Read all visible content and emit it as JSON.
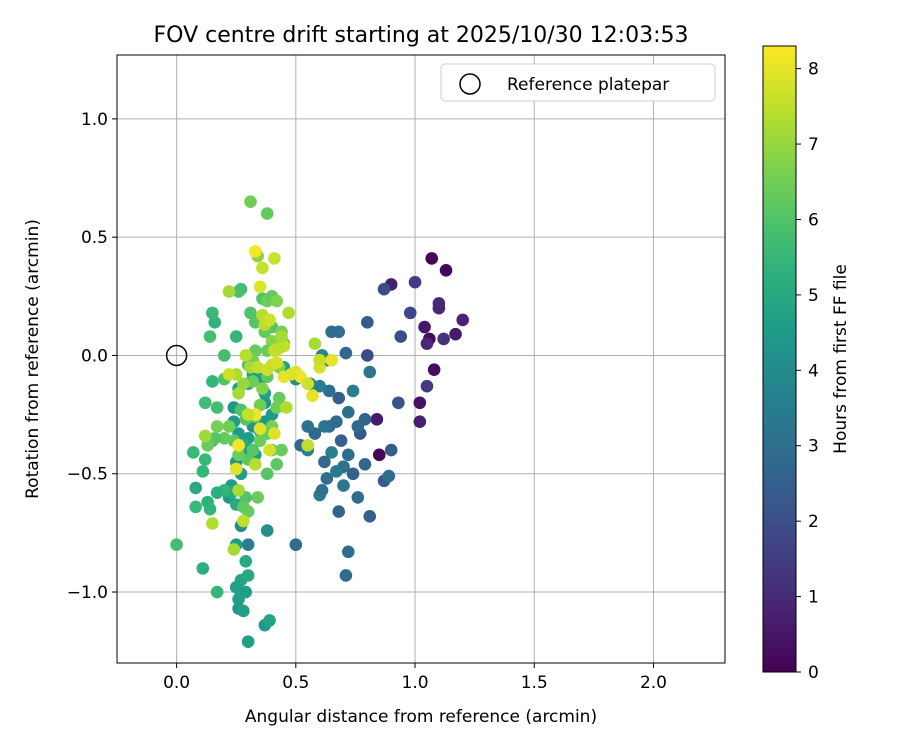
{
  "chart_data": {
    "type": "scatter",
    "title": "FOV centre drift starting at 2025/10/30 12:03:53",
    "xlabel": "Angular distance from reference (arcmin)",
    "ylabel": "Rotation from reference (arcmin)",
    "xlim": [
      -0.25,
      2.3
    ],
    "ylim": [
      -1.3,
      1.27
    ],
    "xticks": [
      0.0,
      0.5,
      1.0,
      1.5,
      2.0
    ],
    "xtick_labels": [
      "0.0",
      "0.5",
      "1.0",
      "1.5",
      "2.0"
    ],
    "yticks": [
      -1.0,
      -0.5,
      0.0,
      0.5,
      1.0
    ],
    "ytick_labels": [
      "−1.0",
      "−0.5",
      "0.0",
      "0.5",
      "1.0"
    ],
    "grid": true,
    "legend": {
      "position": "top-right",
      "entries": [
        "Reference platepar"
      ]
    },
    "reference_point": {
      "x": 0.0,
      "y": 0.0,
      "label": "Reference platepar"
    },
    "colorbar": {
      "label": "Hours from first FF file",
      "colormap": "viridis",
      "range": [
        0,
        8.3
      ],
      "ticks": [
        0,
        1,
        2,
        3,
        4,
        5,
        6,
        7,
        8
      ],
      "tick_labels": [
        "0",
        "1",
        "2",
        "3",
        "4",
        "5",
        "6",
        "7",
        "8"
      ]
    },
    "series": [
      {
        "name": "FOV centre drift",
        "points": [
          [
            1.07,
            0.41,
            0.1
          ],
          [
            1.13,
            0.36,
            0.15
          ],
          [
            1.06,
            0.07,
            0.2
          ],
          [
            1.08,
            -0.06,
            0.25
          ],
          [
            0.85,
            -0.42,
            0.1
          ],
          [
            1.2,
            0.15,
            0.8
          ],
          [
            1.17,
            0.09,
            0.6
          ],
          [
            1.1,
            0.22,
            1.0
          ],
          [
            1.1,
            0.2,
            0.9
          ],
          [
            1.04,
            0.12,
            0.5
          ],
          [
            1.12,
            0.07,
            1.2
          ],
          [
            1.05,
            0.05,
            0.9
          ],
          [
            0.9,
            0.3,
            0.7
          ],
          [
            1.0,
            0.31,
            1.5
          ],
          [
            1.02,
            -0.2,
            0.4
          ],
          [
            1.02,
            -0.28,
            0.7
          ],
          [
            1.05,
            -0.13,
            1.4
          ],
          [
            0.84,
            -0.27,
            0.6
          ],
          [
            0.98,
            0.18,
            1.8
          ],
          [
            0.94,
            0.08,
            1.9
          ],
          [
            0.87,
            0.28,
            1.9
          ],
          [
            0.93,
            -0.2,
            2.1
          ],
          [
            0.9,
            -0.4,
            2.4
          ],
          [
            0.87,
            -0.53,
            2.3
          ],
          [
            0.89,
            -0.51,
            3.0
          ],
          [
            0.8,
            0.0,
            1.9
          ],
          [
            0.8,
            0.14,
            2.4
          ],
          [
            0.81,
            -0.07,
            3.3
          ],
          [
            0.79,
            -0.27,
            2.6
          ],
          [
            0.77,
            -0.33,
            2.2
          ],
          [
            0.81,
            -0.68,
            2.5
          ],
          [
            0.79,
            -0.46,
            2.7
          ],
          [
            0.76,
            -0.3,
            2.8
          ],
          [
            0.74,
            -0.15,
            3.5
          ],
          [
            0.72,
            -0.24,
            3.0
          ],
          [
            0.71,
            0.01,
            2.8
          ],
          [
            0.68,
            0.1,
            3.1
          ],
          [
            0.65,
            0.1,
            2.9
          ],
          [
            0.63,
            -0.02,
            3.2
          ],
          [
            0.61,
            0.0,
            3.8
          ],
          [
            0.68,
            -0.18,
            2.5
          ],
          [
            0.67,
            -0.28,
            2.9
          ],
          [
            0.69,
            -0.36,
            2.5
          ],
          [
            0.72,
            -0.42,
            2.9
          ],
          [
            0.7,
            -0.47,
            3.1
          ],
          [
            0.74,
            -0.5,
            2.6
          ],
          [
            0.76,
            -0.6,
            2.9
          ],
          [
            0.72,
            -0.83,
            3.0
          ],
          [
            0.71,
            -0.93,
            2.9
          ],
          [
            0.68,
            -0.66,
            2.6
          ],
          [
            0.7,
            -0.55,
            3.3
          ],
          [
            0.67,
            -0.49,
            3.4
          ],
          [
            0.65,
            -0.41,
            3.6
          ],
          [
            0.64,
            -0.3,
            2.9
          ],
          [
            0.62,
            -0.3,
            3.2
          ],
          [
            0.62,
            -0.45,
            2.8
          ],
          [
            0.63,
            -0.52,
            3.0
          ],
          [
            0.6,
            -0.59,
            3.4
          ],
          [
            0.61,
            -0.57,
            3.1
          ],
          [
            0.58,
            -0.33,
            2.8
          ],
          [
            0.55,
            -0.3,
            3.1
          ],
          [
            0.52,
            -0.38,
            2.8
          ],
          [
            0.5,
            -0.8,
            2.9
          ],
          [
            0.55,
            -0.4,
            3.7
          ],
          [
            0.64,
            -0.15,
            3.0
          ],
          [
            0.6,
            -0.13,
            3.5
          ],
          [
            0.56,
            -0.12,
            3.9
          ],
          [
            0.5,
            -0.1,
            4.0
          ],
          [
            0.45,
            -0.05,
            4.7
          ],
          [
            0.3,
            -0.8,
            3.5
          ],
          [
            0.38,
            -0.74,
            4.2
          ],
          [
            0.27,
            -0.72,
            4.0
          ],
          [
            0.25,
            -0.8,
            4.5
          ],
          [
            0.22,
            -0.6,
            4.4
          ],
          [
            0.23,
            -0.55,
            4.5
          ],
          [
            0.25,
            -0.45,
            4.4
          ],
          [
            0.27,
            -0.5,
            4.6
          ],
          [
            0.3,
            -0.4,
            4.1
          ],
          [
            0.33,
            -0.42,
            4.7
          ],
          [
            0.3,
            -0.35,
            4.5
          ],
          [
            0.32,
            -0.3,
            4.2
          ],
          [
            0.35,
            -0.32,
            4.5
          ],
          [
            0.37,
            -0.28,
            4.3
          ],
          [
            0.4,
            -0.25,
            4.5
          ],
          [
            0.37,
            -0.2,
            4.3
          ],
          [
            0.37,
            -0.16,
            4.7
          ],
          [
            0.35,
            -0.1,
            4.4
          ],
          [
            0.32,
            -0.08,
            4.6
          ],
          [
            0.3,
            -0.12,
            4.8
          ],
          [
            0.26,
            -0.14,
            4.6
          ],
          [
            0.24,
            -0.22,
            4.3
          ],
          [
            0.24,
            -0.28,
            4.5
          ],
          [
            0.26,
            -0.33,
            4.5
          ],
          [
            0.28,
            -0.38,
            5.0
          ],
          [
            0.27,
            -0.95,
            4.8
          ],
          [
            0.25,
            -0.98,
            4.7
          ],
          [
            0.29,
            -1.0,
            4.6
          ],
          [
            0.26,
            -1.03,
            4.7
          ],
          [
            0.26,
            -1.07,
            4.5
          ],
          [
            0.28,
            -1.08,
            4.7
          ],
          [
            0.3,
            -1.21,
            4.7
          ],
          [
            0.37,
            -1.14,
            4.5
          ],
          [
            0.39,
            -1.12,
            4.8
          ],
          [
            0.3,
            -0.93,
            5.0
          ],
          [
            0.29,
            -0.87,
            5.0
          ],
          [
            0.25,
            -0.63,
            5.1
          ],
          [
            0.23,
            -0.58,
            5.0
          ],
          [
            0.2,
            -0.57,
            5.5
          ],
          [
            0.17,
            -0.58,
            5.2
          ],
          [
            0.13,
            -0.62,
            5.3
          ],
          [
            0.14,
            -0.65,
            5.4
          ],
          [
            0.08,
            -0.56,
            5.0
          ],
          [
            0.08,
            -0.64,
            5.6
          ],
          [
            0.11,
            -0.9,
            5.2
          ],
          [
            0.17,
            -1.0,
            5.5
          ],
          [
            0.0,
            -0.8,
            5.8
          ],
          [
            0.07,
            -0.41,
            5.6
          ],
          [
            0.11,
            -0.49,
            5.5
          ],
          [
            0.12,
            -0.44,
            5.6
          ],
          [
            0.15,
            -0.36,
            5.3
          ],
          [
            0.12,
            -0.2,
            5.7
          ],
          [
            0.17,
            -0.22,
            5.8
          ],
          [
            0.15,
            -0.11,
            5.5
          ],
          [
            0.2,
            -0.1,
            6.0
          ],
          [
            0.2,
            0.0,
            5.8
          ],
          [
            0.14,
            0.08,
            5.8
          ],
          [
            0.16,
            0.14,
            5.4
          ],
          [
            0.15,
            0.18,
            5.6
          ],
          [
            0.25,
            0.08,
            5.5
          ],
          [
            0.27,
            0.28,
            5.7
          ],
          [
            0.26,
            0.27,
            5.9
          ],
          [
            0.31,
            0.18,
            6.0
          ],
          [
            0.33,
            0.14,
            6.1
          ],
          [
            0.36,
            0.24,
            6.0
          ],
          [
            0.38,
            0.23,
            6.4
          ],
          [
            0.4,
            0.25,
            6.3
          ],
          [
            0.42,
            0.23,
            6.7
          ],
          [
            0.4,
            0.12,
            6.1
          ],
          [
            0.37,
            0.1,
            6.3
          ],
          [
            0.44,
            0.1,
            6.6
          ],
          [
            0.45,
            0.05,
            6.2
          ],
          [
            0.42,
            0.04,
            6.5
          ],
          [
            0.4,
            0.06,
            6.8
          ],
          [
            0.38,
            0.02,
            6.4
          ],
          [
            0.33,
            0.02,
            6.3
          ],
          [
            0.32,
            -0.02,
            6.6
          ],
          [
            0.3,
            -0.04,
            6.0
          ],
          [
            0.32,
            -0.11,
            6.4
          ],
          [
            0.36,
            -0.14,
            6.7
          ],
          [
            0.38,
            -0.09,
            6.2
          ],
          [
            0.43,
            -0.05,
            6.7
          ],
          [
            0.43,
            -0.18,
            6.3
          ],
          [
            0.42,
            -0.22,
            6.5
          ],
          [
            0.4,
            -0.3,
            6.6
          ],
          [
            0.38,
            -0.33,
            6.3
          ],
          [
            0.35,
            -0.36,
            6.4
          ],
          [
            0.32,
            -0.4,
            6.1
          ],
          [
            0.3,
            -0.44,
            6.2
          ],
          [
            0.26,
            -0.42,
            6.4
          ],
          [
            0.24,
            -0.36,
            6.2
          ],
          [
            0.22,
            -0.3,
            6.5
          ],
          [
            0.2,
            -0.35,
            6.3
          ],
          [
            0.16,
            -0.35,
            6.1
          ],
          [
            0.13,
            -0.38,
            6.4
          ],
          [
            0.17,
            -0.3,
            6.6
          ],
          [
            0.27,
            -0.23,
            6.0
          ],
          [
            0.29,
            -0.27,
            6.1
          ],
          [
            0.33,
            -0.26,
            6.3
          ],
          [
            0.35,
            -0.21,
            6.5
          ],
          [
            0.4,
            -0.4,
            6.3
          ],
          [
            0.42,
            -0.46,
            6.2
          ],
          [
            0.44,
            -0.4,
            6.4
          ],
          [
            0.38,
            -0.5,
            6.1
          ],
          [
            0.34,
            -0.6,
            6.4
          ],
          [
            0.29,
            -0.6,
            6.0
          ],
          [
            0.28,
            -0.64,
            6.2
          ],
          [
            0.3,
            -0.66,
            6.3
          ],
          [
            0.31,
            0.65,
            6.5
          ],
          [
            0.38,
            0.6,
            6.3
          ],
          [
            0.34,
            0.42,
            6.8
          ],
          [
            0.26,
            -0.57,
            7.2
          ],
          [
            0.28,
            -0.7,
            7.5
          ],
          [
            0.24,
            -0.82,
            7.2
          ],
          [
            0.15,
            -0.71,
            7.3
          ],
          [
            0.12,
            -0.34,
            7.1
          ],
          [
            0.26,
            -0.16,
            7.2
          ],
          [
            0.28,
            -0.12,
            7.0
          ],
          [
            0.25,
            -0.08,
            7.3
          ],
          [
            0.22,
            -0.08,
            7.7
          ],
          [
            0.22,
            0.27,
            7.2
          ],
          [
            0.29,
            0.0,
            7.4
          ],
          [
            0.31,
            -0.05,
            7.2
          ],
          [
            0.34,
            -0.05,
            7.5
          ],
          [
            0.38,
            -0.06,
            7.7
          ],
          [
            0.4,
            -0.04,
            7.6
          ],
          [
            0.42,
            -0.03,
            7.8
          ],
          [
            0.45,
            0.04,
            7.6
          ],
          [
            0.43,
            0.03,
            7.5
          ],
          [
            0.41,
            0.02,
            7.5
          ],
          [
            0.37,
            0.13,
            7.4
          ],
          [
            0.36,
            0.17,
            7.4
          ],
          [
            0.35,
            0.29,
            7.9
          ],
          [
            0.36,
            0.37,
            7.6
          ],
          [
            0.33,
            0.44,
            8.2
          ],
          [
            0.41,
            0.41,
            7.7
          ],
          [
            0.39,
            0.15,
            7.7
          ],
          [
            0.44,
            0.08,
            7.2
          ],
          [
            0.47,
            0.18,
            7.3
          ],
          [
            0.5,
            -0.07,
            7.9
          ],
          [
            0.45,
            -0.09,
            8.0
          ],
          [
            0.52,
            -0.09,
            8.1
          ],
          [
            0.57,
            -0.17,
            8.0
          ],
          [
            0.46,
            -0.22,
            7.3
          ],
          [
            0.41,
            -0.33,
            7.9
          ],
          [
            0.39,
            -0.4,
            7.8
          ],
          [
            0.33,
            -0.25,
            8.1
          ],
          [
            0.35,
            -0.31,
            7.9
          ],
          [
            0.33,
            -0.46,
            7.4
          ],
          [
            0.26,
            -0.38,
            8.2
          ],
          [
            0.25,
            -0.48,
            7.9
          ],
          [
            0.3,
            -0.25,
            7.6
          ],
          [
            0.55,
            -0.38,
            7.5
          ],
          [
            0.58,
            0.05,
            7.2
          ],
          [
            0.6,
            -0.05,
            7.8
          ],
          [
            0.65,
            -0.02,
            8.0
          ],
          [
            0.6,
            -0.02,
            7.6
          ],
          [
            0.55,
            -0.12,
            7.7
          ],
          [
            0.48,
            -0.08,
            7.9
          ]
        ]
      }
    ]
  }
}
